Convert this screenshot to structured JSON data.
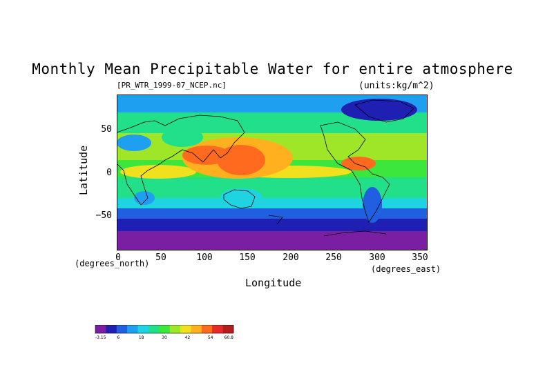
{
  "title": "Monthly Mean Precipitable Water for entire atmosphere",
  "dataset_label": "[PR_WTR_1999-07_NCEP.nc]",
  "units_label": "(units:kg/m^2)",
  "axes": {
    "xlabel": "Longitude",
    "ylabel": "Latitude",
    "x_units": "(degrees_east)",
    "y_units": "(degrees_north)",
    "x_ticks": [
      "0",
      "50",
      "100",
      "150",
      "200",
      "250",
      "300",
      "350"
    ],
    "y_ticks": [
      "50",
      "0",
      "−50"
    ],
    "x_range": [
      0,
      360
    ],
    "y_range": [
      -90,
      90
    ]
  },
  "colorbar": {
    "tick_labels": [
      "-3.15",
      "6",
      "18",
      "30",
      "42",
      "54",
      "60.8"
    ],
    "colors": [
      "#7a1fa2",
      "#1f1fb4",
      "#1f5fe0",
      "#1f9ff0",
      "#1fd4e0",
      "#22e08a",
      "#3ce63c",
      "#a0e628",
      "#f0e01e",
      "#ffb01e",
      "#ff6a1e",
      "#e62828",
      "#b01e1e"
    ]
  },
  "colors": {
    "ocean_poles": "#7a1fa2",
    "high_lat": "#1f1fb4",
    "mid_lat": "#1f9ff0",
    "subtropics": "#22e08a",
    "tropics": "#f0e01e",
    "warm_pool": "#ff6a1e"
  }
}
